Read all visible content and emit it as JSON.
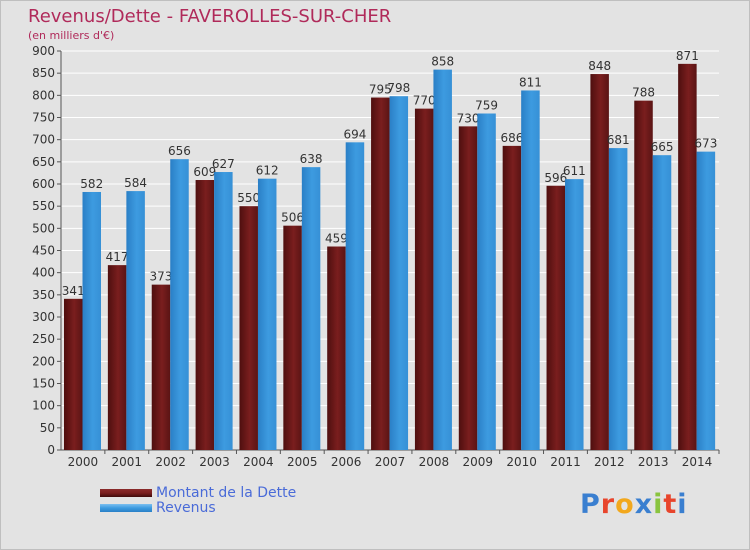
{
  "title": "Revenus/Dette - FAVEROLLES-SUR-CHER",
  "subtitle": "(en milliers d'€)",
  "logo": {
    "text": "Proxiti",
    "letter_colors": [
      "#3a7fd0",
      "#e8452c",
      "#f2a81d",
      "#3a7fd0",
      "#8ac43f",
      "#e8452c",
      "#3a7fd0"
    ]
  },
  "colors": {
    "dette": "#7a1e1e",
    "revenus": "#3d9be0",
    "plot_bg": "#e3e3e3",
    "grid": "#ffffff"
  },
  "chart_data": {
    "type": "bar",
    "categories": [
      "2000",
      "2001",
      "2002",
      "2003",
      "2004",
      "2005",
      "2006",
      "2007",
      "2008",
      "2009",
      "2010",
      "2011",
      "2012",
      "2013",
      "2014"
    ],
    "series": [
      {
        "name": "Montant de la Dette",
        "values": [
          341,
          417,
          373,
          609,
          550,
          506,
          459,
          795,
          770,
          730,
          686,
          596,
          848,
          788,
          871
        ]
      },
      {
        "name": "Revenus",
        "values": [
          582,
          584,
          656,
          627,
          612,
          638,
          694,
          798,
          858,
          759,
          811,
          611,
          681,
          665,
          673
        ]
      }
    ],
    "ylim": [
      0,
      900
    ],
    "yticks": [
      0,
      50,
      100,
      150,
      200,
      250,
      300,
      350,
      400,
      450,
      500,
      550,
      600,
      650,
      700,
      750,
      800,
      850,
      900
    ],
    "grid": true,
    "legend": "bottom-left"
  }
}
